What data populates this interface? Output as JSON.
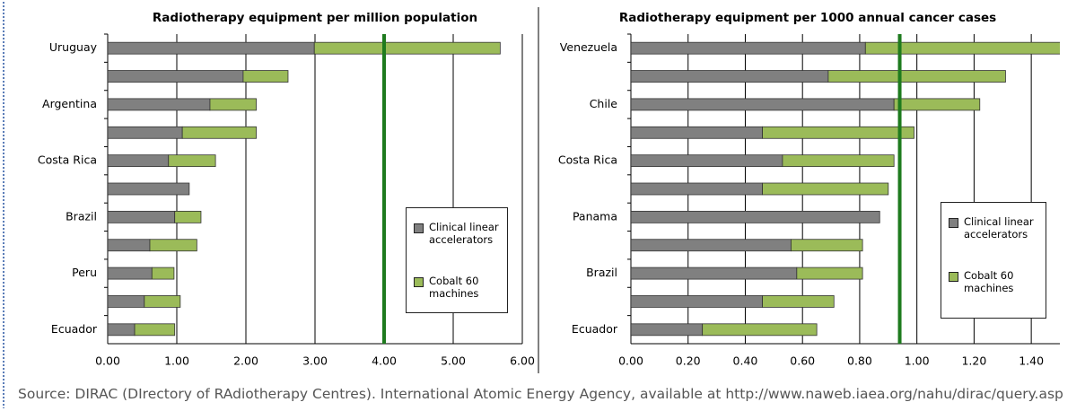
{
  "chart_data": [
    {
      "type": "stacked-barh",
      "title": "Radiotherapy equipment per million population",
      "categories": [
        "Uruguay",
        null,
        "Argentina",
        null,
        "Costa Rica",
        null,
        "Brazil",
        null,
        "Peru",
        null,
        "Ecuador"
      ],
      "series": [
        {
          "name": "Clinical linear accelerators",
          "color": "#808080",
          "values": [
            2.99,
            1.96,
            1.48,
            1.08,
            0.88,
            1.18,
            0.97,
            0.61,
            0.64,
            0.53,
            0.39
          ]
        },
        {
          "name": "Cobalt 60 machines",
          "color": "#9bbb59",
          "values": [
            2.69,
            0.65,
            0.67,
            1.07,
            0.68,
            0,
            0.38,
            0.68,
            0.32,
            0.52,
            0.58
          ]
        }
      ],
      "xlim": [
        0,
        6
      ],
      "xticks": [
        {
          "value": 0,
          "label": "0.00"
        },
        {
          "value": 1,
          "label": "1.00"
        },
        {
          "value": 2,
          "label": "2.00"
        },
        {
          "value": 3,
          "label": "3.00"
        },
        {
          "value": 4,
          "label": "4.00"
        },
        {
          "value": 5,
          "label": "5.00"
        },
        {
          "value": 6,
          "label": "6.00"
        }
      ],
      "grid": true,
      "reference_line": 4.0,
      "reference_color": "#1e7b1e"
    },
    {
      "type": "stacked-barh",
      "title": "Radiotherapy equipment per 1000 annual cancer cases",
      "categories": [
        "Venezuela",
        null,
        "Chile",
        null,
        "Costa Rica",
        null,
        "Panama",
        null,
        "Brazil",
        null,
        "Ecuador"
      ],
      "series": [
        {
          "name": "Clinical linear accelerators",
          "color": "#808080",
          "values": [
            0.82,
            0.69,
            0.92,
            0.46,
            0.53,
            0.46,
            0.87,
            0.56,
            0.58,
            0.46,
            0.25
          ]
        },
        {
          "name": "Cobalt 60 machines",
          "color": "#9bbb59",
          "values": [
            0.78,
            0.62,
            0.3,
            0.53,
            0.39,
            0.44,
            0,
            0.25,
            0.23,
            0.25,
            0.4
          ]
        }
      ],
      "xlim": [
        0,
        1.5
      ],
      "xticks": [
        {
          "value": 0,
          "label": "0.00"
        },
        {
          "value": 0.2,
          "label": "0.20"
        },
        {
          "value": 0.4,
          "label": "0.40"
        },
        {
          "value": 0.6,
          "label": "0.60"
        },
        {
          "value": 0.8,
          "label": "0.80"
        },
        {
          "value": 1,
          "label": "1.00"
        },
        {
          "value": 1.2,
          "label": "1.20"
        },
        {
          "value": 1.4,
          "label": "1.40"
        }
      ],
      "grid": true,
      "reference_line": 0.94,
      "reference_color": "#1e7b1e"
    }
  ],
  "source": "Source: DIRAC (DIrectory of RAdiotherapy Centres). International Atomic Energy Agency, available at http://www.naweb.iaea.org/nahu/dirac/query.asp"
}
